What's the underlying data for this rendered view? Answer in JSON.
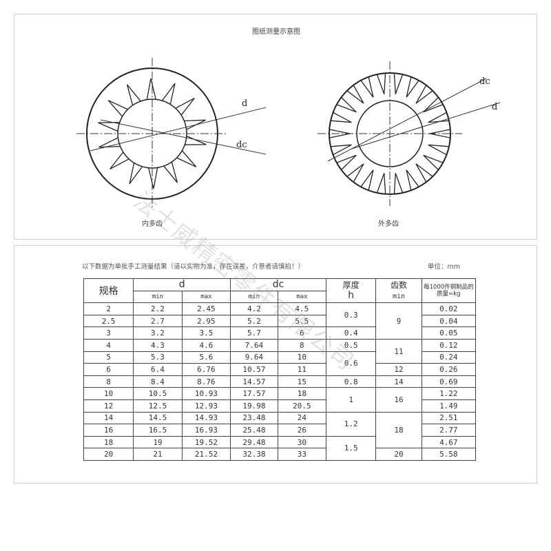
{
  "diagram": {
    "title": "图纸测量示意图",
    "internal": {
      "caption": "内多齿",
      "label_d": "d",
      "label_dc": "dc"
    },
    "external": {
      "caption": "外多齿",
      "label_d": "d",
      "label_dc": "dc"
    }
  },
  "table": {
    "note": "以下数据为单批手工测量结果（请以实物为准，存在误差，介意者请慎拍！）",
    "unit": "单位：mm",
    "headers": {
      "spec": "规格",
      "d": "d",
      "dc": "dc",
      "min": "min",
      "max": "max",
      "thickness": "厚度",
      "thickness_sym": "h",
      "teeth": "齿数",
      "teeth_sub": "min",
      "mass": "每1000件钢制品的质量≈kg"
    },
    "rows": [
      [
        "2",
        "2.2",
        "2.45",
        "4.2",
        "4.5",
        "0.02"
      ],
      [
        "2.5",
        "2.7",
        "2.95",
        "5.2",
        "5.5",
        "0.04"
      ],
      [
        "3",
        "3.2",
        "3.5",
        "5.7",
        "6",
        "0.05"
      ],
      [
        "4",
        "4.3",
        "4.6",
        "7.64",
        "8",
        "0.12"
      ],
      [
        "5",
        "5.3",
        "5.6",
        "9.64",
        "10",
        "0.24"
      ],
      [
        "6",
        "6.4",
        "6.76",
        "10.57",
        "11",
        "0.26"
      ],
      [
        "8",
        "8.4",
        "8.76",
        "14.57",
        "15",
        "0.69"
      ],
      [
        "10",
        "10.5",
        "10.93",
        "17.57",
        "18",
        "1.22"
      ],
      [
        "12",
        "12.5",
        "12.93",
        "19.98",
        "20.5",
        "1.49"
      ],
      [
        "14",
        "14.5",
        "14.93",
        "23.48",
        "24",
        "2.51"
      ],
      [
        "16",
        "16.5",
        "16.93",
        "25.48",
        "26",
        "2.77"
      ],
      [
        "18",
        "19",
        "19.52",
        "29.48",
        "30",
        "4.67"
      ],
      [
        "20",
        "21",
        "21.52",
        "32.38",
        "33",
        "5.58"
      ]
    ],
    "thickness_groups": [
      {
        "value": "0.3",
        "rows": 2
      },
      {
        "value": "0.4",
        "rows": 1
      },
      {
        "value": "0.5",
        "rows": 1
      },
      {
        "value": "0.6",
        "rows": 2
      },
      {
        "value": "0.8",
        "rows": 1
      },
      {
        "value": "1",
        "rows": 2
      },
      {
        "value": "1.2",
        "rows": 2
      },
      {
        "value": "1.5",
        "rows": 2
      }
    ],
    "teeth_groups": [
      {
        "value": "9",
        "rows": 3
      },
      {
        "value": "11",
        "rows": 2
      },
      {
        "value": "12",
        "rows": 1
      },
      {
        "value": "14",
        "rows": 1
      },
      {
        "value": "16",
        "rows": 2
      },
      {
        "value": "18",
        "rows": 3
      },
      {
        "value": "20",
        "rows": 1
      }
    ]
  },
  "watermark": "法士威精密零件有限公司"
}
